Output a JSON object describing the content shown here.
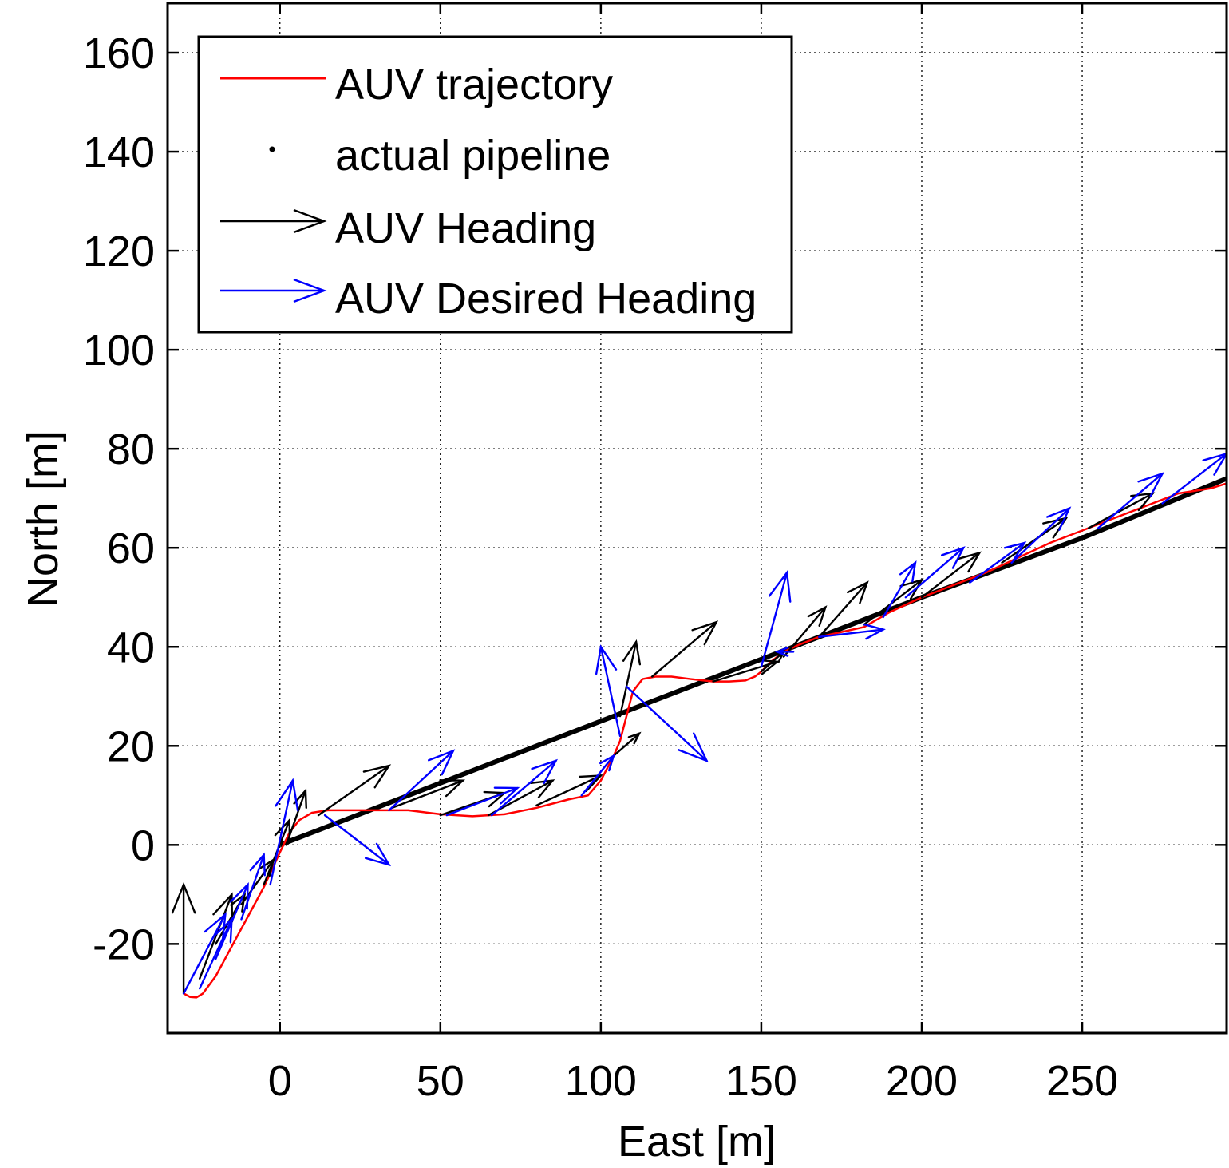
{
  "chart_data": {
    "type": "line",
    "xlabel": "East [m]",
    "ylabel": "North [m]",
    "xlim": [
      -35,
      295
    ],
    "ylim": [
      -38,
      170
    ],
    "xticks": [
      0,
      50,
      100,
      150,
      200,
      250
    ],
    "yticks": [
      -20,
      0,
      20,
      40,
      60,
      80,
      100,
      120,
      140,
      160
    ],
    "xtick_labels": [
      "0",
      "50",
      "100",
      "150",
      "200",
      "250"
    ],
    "ytick_labels": [
      "-20",
      "0",
      "20",
      "40",
      "60",
      "80",
      "100",
      "120",
      "140",
      "160"
    ],
    "grid": true,
    "legend_position": "top-left",
    "colors": {
      "trajectory": "#ff0000",
      "pipeline": "#000000",
      "heading": "#000000",
      "desired_heading": "#0000ff"
    },
    "legend": [
      {
        "key": "trajectory",
        "label": "AUV trajectory"
      },
      {
        "key": "pipeline",
        "label": "actual pipeline"
      },
      {
        "key": "heading",
        "label": "AUV Heading"
      },
      {
        "key": "desired_heading",
        "label": "AUV Desired Heading"
      }
    ],
    "pipeline": {
      "x": [
        0,
        50,
        100,
        150,
        200,
        250,
        295
      ],
      "y": [
        0,
        12.5,
        25,
        37.5,
        50,
        62,
        74
      ]
    },
    "trajectory": {
      "x": [
        -30,
        -28,
        -26,
        -24,
        -20,
        -15,
        -10,
        -5,
        0,
        3,
        6,
        10,
        15,
        20,
        30,
        40,
        50,
        60,
        70,
        80,
        90,
        96,
        100,
        104,
        106,
        108,
        110,
        113,
        117,
        122,
        128,
        135,
        140,
        145,
        148,
        150,
        153,
        157,
        162,
        168,
        175,
        182,
        190,
        200,
        210,
        220,
        230,
        240,
        250,
        260,
        270,
        280,
        290,
        295
      ],
      "y": [
        -30,
        -30.7,
        -30.8,
        -30,
        -26.5,
        -20.5,
        -14.5,
        -8.5,
        -1.5,
        2.5,
        5,
        6.5,
        7,
        7,
        7,
        7,
        6.2,
        5.8,
        6.2,
        7.5,
        9.2,
        10,
        13,
        18,
        21,
        26,
        31,
        33.5,
        34,
        34,
        33.5,
        33,
        33,
        33.2,
        34,
        35,
        37,
        39,
        40.5,
        42,
        43,
        44,
        47,
        50,
        52.5,
        55,
        58,
        61,
        63.5,
        66,
        68.5,
        71,
        72,
        73
      ]
    },
    "heading_arrows": [
      {
        "x": -30,
        "y": -30,
        "dx": 0,
        "dy": 22
      },
      {
        "x": -25,
        "y": -27,
        "dx": 10,
        "dy": 17
      },
      {
        "x": -20,
        "y": -20,
        "dx": 9,
        "dy": 10
      },
      {
        "x": -12,
        "y": -12,
        "dx": 10,
        "dy": 9
      },
      {
        "x": -5,
        "y": -8,
        "dx": 8,
        "dy": 13
      },
      {
        "x": 2,
        "y": 0,
        "dx": 6,
        "dy": 11
      },
      {
        "x": 12,
        "y": 6,
        "dx": 22,
        "dy": 10
      },
      {
        "x": 35,
        "y": 7.5,
        "dx": 22,
        "dy": 5.5
      },
      {
        "x": 50,
        "y": 6,
        "dx": 20,
        "dy": 4.5
      },
      {
        "x": 65,
        "y": 6,
        "dx": 20,
        "dy": 7
      },
      {
        "x": 80,
        "y": 8,
        "dx": 20,
        "dy": 6
      },
      {
        "x": 104,
        "y": 18,
        "dx": 8,
        "dy": 4.5
      },
      {
        "x": 106,
        "y": 26,
        "dx": 5,
        "dy": 15
      },
      {
        "x": 116,
        "y": 34,
        "dx": 20,
        "dy": 11
      },
      {
        "x": 135,
        "y": 33,
        "dx": 20,
        "dy": 4
      },
      {
        "x": 150,
        "y": 35,
        "dx": 7,
        "dy": 4
      },
      {
        "x": 157,
        "y": 38,
        "dx": 13,
        "dy": 10
      },
      {
        "x": 168,
        "y": 42,
        "dx": 15,
        "dy": 11
      },
      {
        "x": 182,
        "y": 44.5,
        "dx": 18,
        "dy": 9
      },
      {
        "x": 200,
        "y": 50,
        "dx": 18,
        "dy": 9
      },
      {
        "x": 225,
        "y": 57,
        "dx": 20,
        "dy": 9
      },
      {
        "x": 252,
        "y": 64,
        "dx": 20,
        "dy": 7
      }
    ],
    "desired_heading_arrows": [
      {
        "x": -30,
        "y": -30,
        "dx": 13,
        "dy": 16
      },
      {
        "x": -25,
        "y": -29,
        "dx": 10,
        "dy": 14
      },
      {
        "x": -20,
        "y": -23,
        "dx": 10,
        "dy": 15
      },
      {
        "x": -12,
        "y": -15,
        "dx": 7,
        "dy": 13
      },
      {
        "x": -3,
        "y": -8,
        "dx": 7,
        "dy": 21
      },
      {
        "x": 14,
        "y": 6,
        "dx": 20,
        "dy": -10
      },
      {
        "x": 34,
        "y": 7,
        "dx": 20,
        "dy": 12
      },
      {
        "x": 52,
        "y": 6,
        "dx": 22,
        "dy": 5.5
      },
      {
        "x": 66,
        "y": 6,
        "dx": 20,
        "dy": 11
      },
      {
        "x": 94,
        "y": 10,
        "dx": 10,
        "dy": 8
      },
      {
        "x": 106,
        "y": 22,
        "dx": -6,
        "dy": 18
      },
      {
        "x": 108,
        "y": 32,
        "dx": 25,
        "dy": -15
      },
      {
        "x": 150,
        "y": 36,
        "dx": 8,
        "dy": 19
      },
      {
        "x": 160,
        "y": 39,
        "dx": -5,
        "dy": 0
      },
      {
        "x": 168,
        "y": 42,
        "dx": 20,
        "dy": 1.5
      },
      {
        "x": 188,
        "y": 46,
        "dx": 10,
        "dy": 11
      },
      {
        "x": 195,
        "y": 50,
        "dx": 18,
        "dy": 10
      },
      {
        "x": 215,
        "y": 53,
        "dx": 17,
        "dy": 8
      },
      {
        "x": 228,
        "y": 57,
        "dx": 18,
        "dy": 11
      },
      {
        "x": 255,
        "y": 64,
        "dx": 20,
        "dy": 11
      },
      {
        "x": 275,
        "y": 69,
        "dx": 20,
        "dy": 10
      }
    ]
  }
}
